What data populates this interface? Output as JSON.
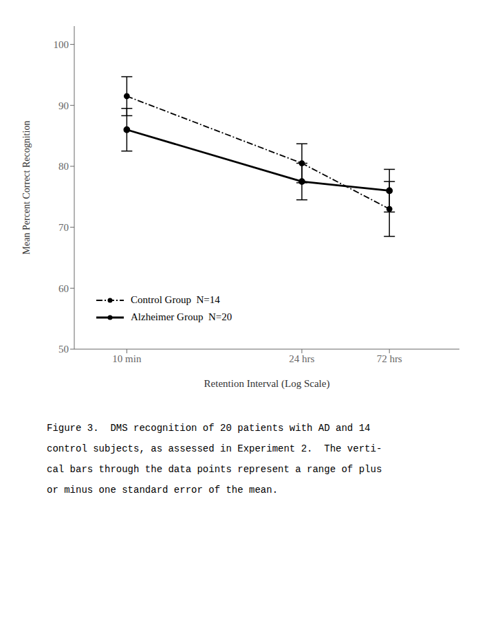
{
  "chart_data": {
    "type": "line",
    "x": [
      1,
      3,
      4
    ],
    "xlim": [
      0.4,
      4.8
    ],
    "xticks": [
      {
        "value": 1,
        "label": "10 min"
      },
      {
        "value": 3,
        "label": "24 hrs"
      },
      {
        "value": 4,
        "label": "72 hrs"
      }
    ],
    "ylim": [
      50,
      103
    ],
    "yticks": [
      50,
      60,
      70,
      80,
      90,
      100
    ],
    "xlabel": "Retention Interval (Log Scale)",
    "ylabel": "Mean Percent Correct Recognition",
    "series": [
      {
        "name": "Control Group  N=14",
        "color": "#000000",
        "values": [
          91.5,
          80.5,
          73.0
        ],
        "errors": [
          3.2,
          3.2,
          4.5
        ],
        "marker": "circle",
        "line_style": "dashdot"
      },
      {
        "name": "Alzheimer Group  N=20",
        "color": "#000000",
        "values": [
          86.0,
          77.5,
          76.0
        ],
        "errors": [
          3.5,
          3.0,
          3.5
        ],
        "marker": "circle",
        "line_style": "solid"
      }
    ],
    "legend": "lower left",
    "grid": false,
    "annotations": [
      "Figure 3.  DMS recognition of 20 patients with AD and 14",
      "control subjects, as assessed in Experiment 2.  The verti-",
      "cal bars through the data points represent a range of plus",
      "or minus one standard error of the mean."
    ]
  }
}
